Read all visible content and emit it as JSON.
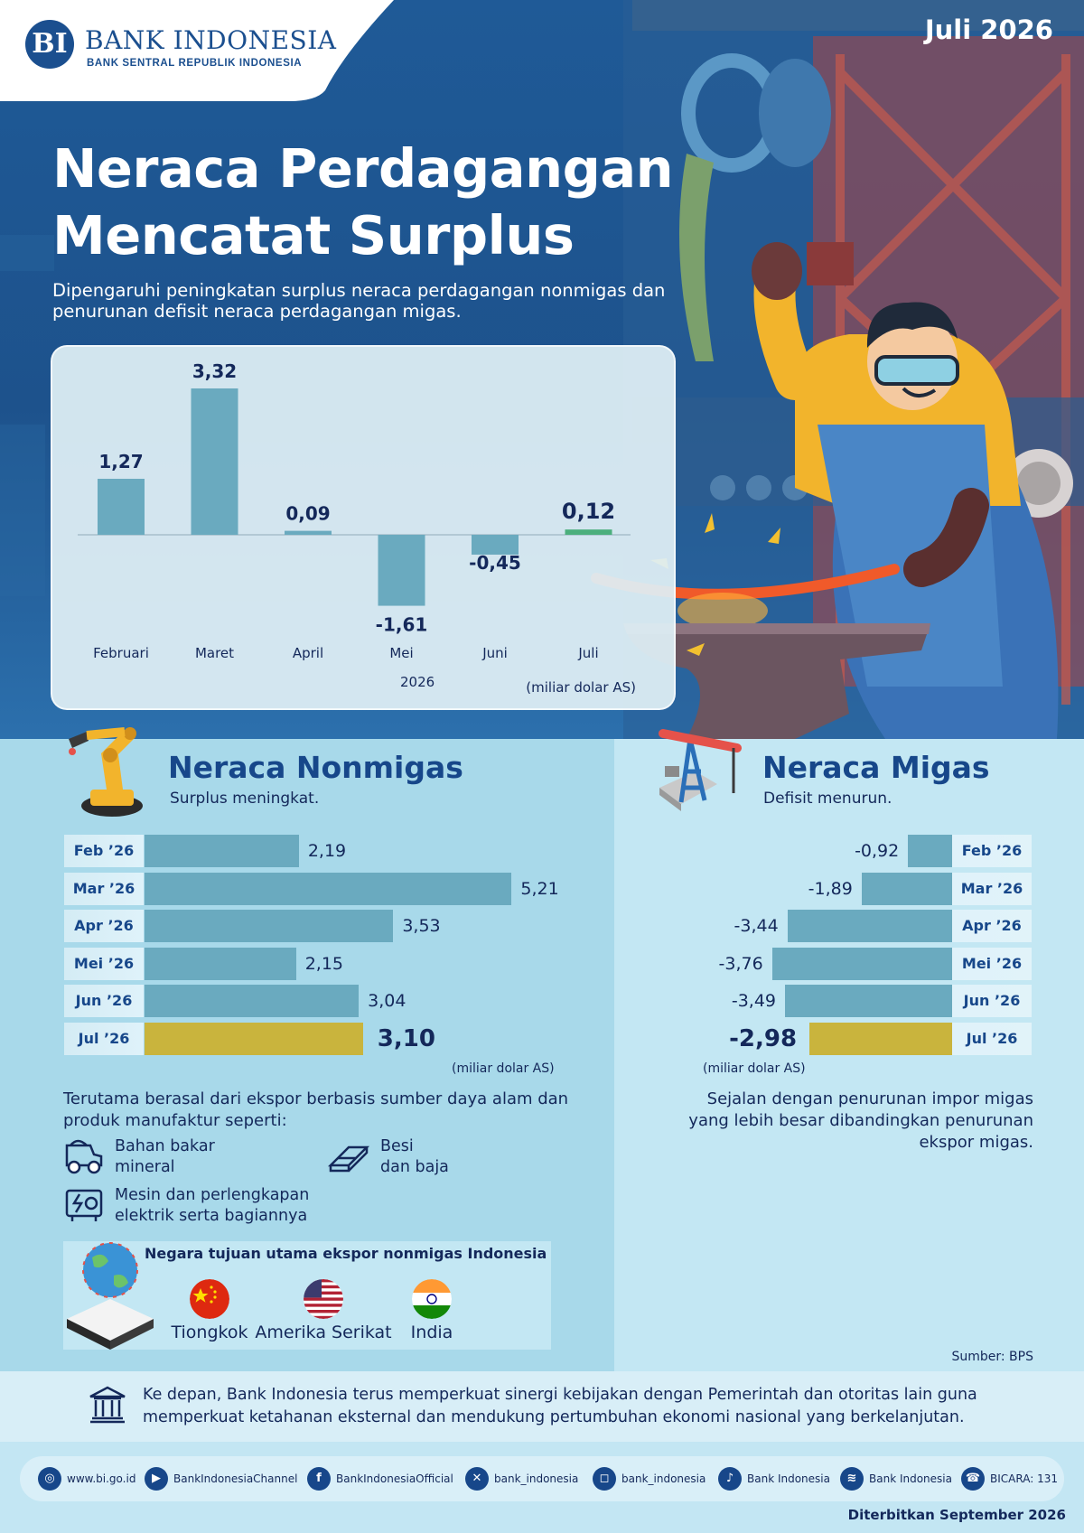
{
  "header": {
    "logo_name": "BANK INDONESIA",
    "logo_subtitle": "BANK SENTRAL REPUBLIK INDONESIA",
    "date": "Juli 2026",
    "title_line1": "Neraca Perdagangan",
    "title_line2": "Mencatat Surplus",
    "subtitle": "Dipengaruhi peningkatan surplus neraca perdagangan nonmigas dan penurunan defisit neraca perdagangan migas."
  },
  "chart_data": [
    {
      "type": "bar",
      "categories": [
        "Februari",
        "Maret",
        "April",
        "Mei",
        "Juni",
        "Juli"
      ],
      "values": [
        1.27,
        3.32,
        0.09,
        -1.61,
        -0.45,
        0.12
      ],
      "value_labels": [
        "1,27",
        "3,32",
        "0,09",
        "-1,61",
        "-0,45",
        "0,12"
      ],
      "xlabel": "2026",
      "unit": "(miliar dolar AS)",
      "colors": {
        "bar": "#6aaabf",
        "last": "#4caf7d"
      }
    },
    {
      "type": "bar",
      "orientation": "horizontal",
      "title": "Neraca Nonmigas",
      "subtitle": "Surplus meningkat.",
      "categories": [
        "Feb ’26",
        "Mar ’26",
        "Apr ’26",
        "Mei ’26",
        "Jun ’26",
        "Jul ’26"
      ],
      "values": [
        2.19,
        5.21,
        3.53,
        2.15,
        3.04,
        3.1
      ],
      "value_labels": [
        "2,19",
        "5,21",
        "3,53",
        "2,15",
        "3,04",
        "3,10"
      ],
      "unit": "(miliar dolar AS)",
      "colors": {
        "bar": "#6aaabf",
        "highlight": "#c9b43d"
      }
    },
    {
      "type": "bar",
      "orientation": "horizontal",
      "title": "Neraca Migas",
      "subtitle": "Defisit menurun.",
      "categories": [
        "Feb ’26",
        "Mar ’26",
        "Apr ’26",
        "Mei ’26",
        "Jun ’26",
        "Jul ’26"
      ],
      "values": [
        -0.92,
        -1.89,
        -3.44,
        -3.76,
        -3.49,
        -2.98
      ],
      "value_labels": [
        "-0,92",
        "-1,89",
        "-3,44",
        "-3,76",
        "-3,49",
        "-2,98"
      ],
      "unit": "(miliar dolar AS)",
      "colors": {
        "bar": "#6aaabf",
        "highlight": "#c9b43d"
      }
    }
  ],
  "nonmigas": {
    "description": "Terutama berasal dari ekspor berbasis sumber daya alam dan produk manufaktur seperti:",
    "items": [
      {
        "line1": "Bahan bakar",
        "line2": "mineral",
        "icon": "mining-truck-icon"
      },
      {
        "line1": "Besi",
        "line2": "dan baja",
        "icon": "steel-beams-icon"
      },
      {
        "line1": "Mesin dan perlengkapan",
        "line2": "elektrik serta bagiannya",
        "icon": "electric-machine-icon"
      }
    ],
    "destinations_title": "Negara tujuan utama ekspor nonmigas Indonesia",
    "destinations": [
      "Tiongkok",
      "Amerika Serikat",
      "India"
    ]
  },
  "migas": {
    "description_line1": "Sejalan dengan penurunan impor migas",
    "description_line2": "yang lebih besar dibandingkan penurunan",
    "description_line3": "ekspor migas."
  },
  "source": "Sumber: BPS",
  "closing": "Ke depan, Bank Indonesia terus memperkuat sinergi kebijakan dengan Pemerintah dan otoritas lain guna memperkuat ketahanan eksternal dan mendukung pertumbuhan ekonomi nasional yang berkelanjutan.",
  "footer": {
    "social": [
      {
        "icon": "globe-icon",
        "label": "www.bi.go.id"
      },
      {
        "icon": "youtube-icon",
        "label": "BankIndonesiaChannel"
      },
      {
        "icon": "facebook-icon",
        "label": "BankIndonesiaOfficial"
      },
      {
        "icon": "x-icon",
        "label": "bank_indonesia"
      },
      {
        "icon": "instagram-icon",
        "label": "bank_indonesia"
      },
      {
        "icon": "tiktok-icon",
        "label": "Bank Indonesia"
      },
      {
        "icon": "spotify-icon",
        "label": "Bank Indonesia"
      },
      {
        "icon": "bicara-icon",
        "label": "BICARA: 131"
      }
    ],
    "published": "Diterbitkan September 2026"
  }
}
